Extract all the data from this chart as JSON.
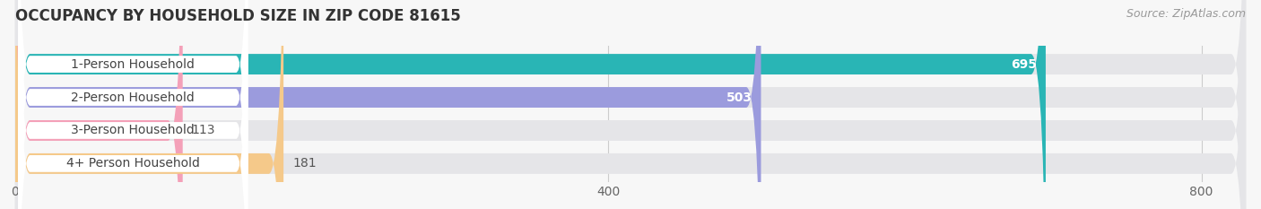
{
  "title": "OCCUPANCY BY HOUSEHOLD SIZE IN ZIP CODE 81615",
  "source": "Source: ZipAtlas.com",
  "categories": [
    "1-Person Household",
    "2-Person Household",
    "3-Person Household",
    "4+ Person Household"
  ],
  "values": [
    695,
    503,
    113,
    181
  ],
  "bar_colors": [
    "#29b5b5",
    "#9b9bdd",
    "#f4a0b8",
    "#f5c98a"
  ],
  "value_label_colors": [
    "#ffffff",
    "#ffffff",
    "#555555",
    "#555555"
  ],
  "xlim": [
    0,
    830
  ],
  "xticks": [
    0,
    400,
    800
  ],
  "background_color": "#f7f7f7",
  "bar_background_color": "#e5e5e8",
  "title_fontsize": 12,
  "source_fontsize": 9,
  "label_fontsize": 10,
  "value_fontsize": 10
}
